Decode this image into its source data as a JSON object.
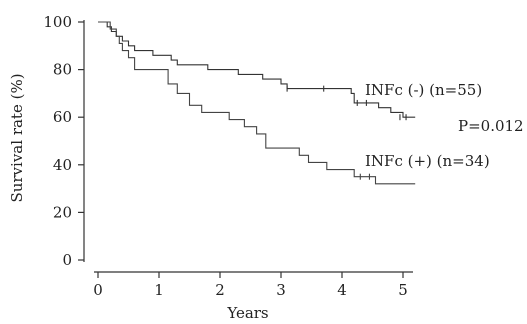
{
  "chart_data": {
    "type": "line",
    "title": "",
    "xlabel": "Years",
    "ylabel": "Survival rate (%)",
    "xlim": [
      0,
      5
    ],
    "ylim": [
      0,
      100
    ],
    "x_ticks": [
      "0",
      "1",
      "2",
      "3",
      "4",
      "5"
    ],
    "y_ticks": [
      "0",
      "20",
      "40",
      "60",
      "80",
      "100"
    ],
    "grid": false,
    "step": true,
    "series": [
      {
        "name": "INFc (-) (n=55)",
        "color": "#333333",
        "x": [
          0,
          0.15,
          0.22,
          0.3,
          0.4,
          0.5,
          0.6,
          0.9,
          1.2,
          1.3,
          1.8,
          2.3,
          2.7,
          3.0,
          3.1,
          4.15,
          4.2,
          4.6,
          4.8,
          5.0,
          5.2
        ],
        "y": [
          100,
          98,
          96,
          94,
          92,
          90,
          88,
          86,
          84,
          82,
          80,
          78,
          76,
          74,
          72,
          70,
          66,
          64,
          62,
          60,
          60
        ],
        "censored": [
          {
            "x": 3.1,
            "y": 72
          },
          {
            "x": 3.7,
            "y": 72
          },
          {
            "x": 4.25,
            "y": 66
          },
          {
            "x": 4.4,
            "y": 66
          },
          {
            "x": 4.95,
            "y": 60
          },
          {
            "x": 5.05,
            "y": 60
          }
        ]
      },
      {
        "name": "INFc (+) (n=34)",
        "color": "#444444",
        "x": [
          0,
          0.2,
          0.3,
          0.35,
          0.4,
          0.5,
          0.6,
          1.15,
          1.3,
          1.5,
          1.7,
          2.15,
          2.4,
          2.6,
          2.75,
          3.3,
          3.45,
          3.75,
          4.2,
          4.55,
          5.2
        ],
        "y": [
          100,
          97,
          94,
          91,
          88,
          85,
          80,
          74,
          70,
          65,
          62,
          59,
          56,
          53,
          47,
          44,
          41,
          38,
          35,
          32,
          32
        ],
        "censored": [
          {
            "x": 4.3,
            "y": 35
          },
          {
            "x": 4.45,
            "y": 35
          }
        ]
      }
    ],
    "annotations": [
      {
        "id": "neg",
        "text": "INFc (-) (n=55)"
      },
      {
        "id": "pval",
        "text": "P=0.012"
      },
      {
        "id": "pos",
        "text": "INFc (+) (n=34)"
      }
    ]
  }
}
